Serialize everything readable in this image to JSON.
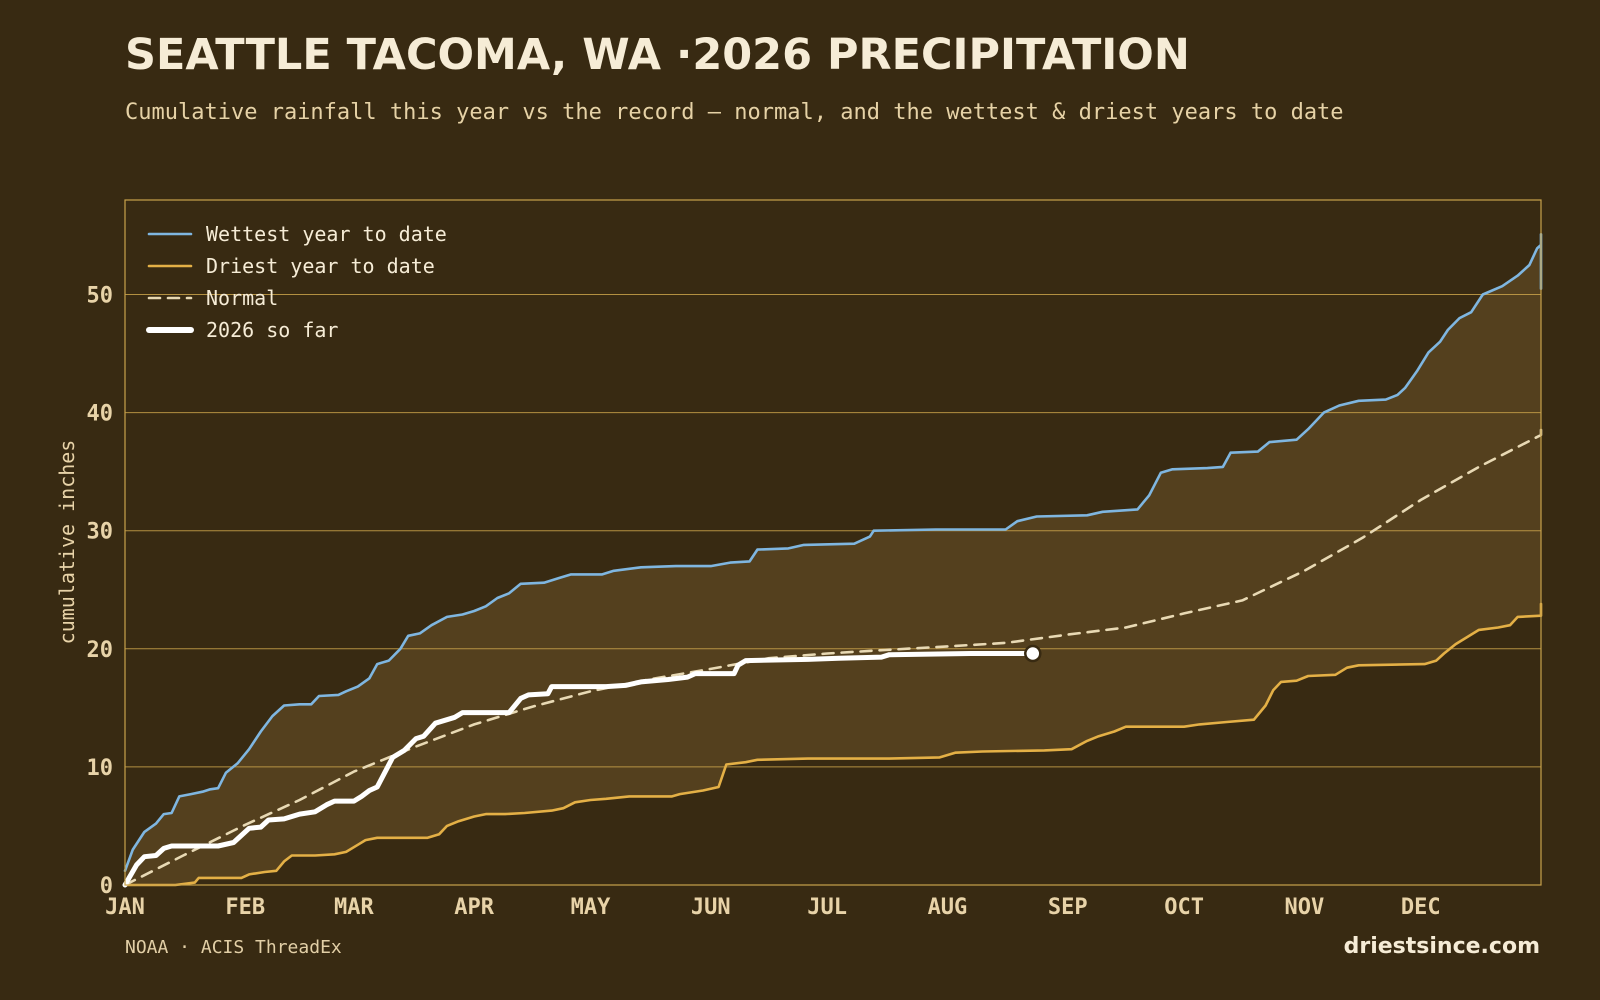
{
  "header": {
    "title": "SEATTLE TACOMA, WA ·2026 PRECIPITATION",
    "subtitle": "Cumulative rainfall this year vs the record — normal, and the wettest & driest years to date"
  },
  "footer": {
    "source": "NOAA · ACIS ThreadEx",
    "site": "driestsince.com"
  },
  "colors": {
    "background": "#382a12",
    "band_fill": "#54401e",
    "frame": "#c9a24a",
    "wettest": "#7fb6e0",
    "driest": "#e4b046",
    "normal": "#e8d9b4",
    "current": "#ffffff",
    "tick_text": "#e8d3a8"
  },
  "chart_data": {
    "type": "line",
    "title": "SEATTLE TACOMA, WA ·2026 PRECIPITATION",
    "ylabel": "cumulative inches",
    "xlabel": "",
    "x_unit": "day of year",
    "xlim": [
      1,
      366
    ],
    "ylim": [
      0,
      58
    ],
    "y_ticks": [
      0,
      10,
      20,
      30,
      40,
      50
    ],
    "month_ticks": [
      {
        "label": "JAN",
        "day": 1
      },
      {
        "label": "FEB",
        "day": 32
      },
      {
        "label": "MAR",
        "day": 60
      },
      {
        "label": "APR",
        "day": 91
      },
      {
        "label": "MAY",
        "day": 121
      },
      {
        "label": "JUN",
        "day": 152
      },
      {
        "label": "JUL",
        "day": 182
      },
      {
        "label": "AUG",
        "day": 213
      },
      {
        "label": "SEP",
        "day": 244
      },
      {
        "label": "OCT",
        "day": 274
      },
      {
        "label": "NOV",
        "day": 305
      },
      {
        "label": "DEC",
        "day": 335
      }
    ],
    "grid": "horizontal",
    "legend_position": "top-left",
    "band": {
      "upper": "Wettest year to date",
      "lower": "Driest year to date"
    },
    "series": [
      {
        "name": "Wettest year to date",
        "style": "solid",
        "points": [
          [
            1,
            1.2
          ],
          [
            3,
            3.0
          ],
          [
            6,
            4.5
          ],
          [
            9,
            5.2
          ],
          [
            11,
            6.0
          ],
          [
            13,
            6.1
          ],
          [
            15,
            7.5
          ],
          [
            18,
            7.7
          ],
          [
            21,
            7.9
          ],
          [
            23,
            8.1
          ],
          [
            25,
            8.2
          ],
          [
            27,
            9.5
          ],
          [
            30,
            10.3
          ],
          [
            33,
            11.5
          ],
          [
            36,
            13.0
          ],
          [
            39,
            14.3
          ],
          [
            42,
            15.2
          ],
          [
            46,
            15.3
          ],
          [
            49,
            15.3
          ],
          [
            51,
            16.0
          ],
          [
            56,
            16.1
          ],
          [
            58,
            16.4
          ],
          [
            61,
            16.8
          ],
          [
            64,
            17.5
          ],
          [
            66,
            18.7
          ],
          [
            69,
            19.0
          ],
          [
            72,
            20.0
          ],
          [
            74,
            21.1
          ],
          [
            77,
            21.3
          ],
          [
            80,
            22.0
          ],
          [
            84,
            22.7
          ],
          [
            88,
            22.9
          ],
          [
            91,
            23.2
          ],
          [
            94,
            23.6
          ],
          [
            97,
            24.3
          ],
          [
            100,
            24.7
          ],
          [
            103,
            25.5
          ],
          [
            109,
            25.6
          ],
          [
            113,
            26.0
          ],
          [
            116,
            26.3
          ],
          [
            124,
            26.3
          ],
          [
            127,
            26.6
          ],
          [
            134,
            26.9
          ],
          [
            143,
            27.0
          ],
          [
            152,
            27.0
          ],
          [
            157,
            27.3
          ],
          [
            162,
            27.4
          ],
          [
            164,
            28.4
          ],
          [
            172,
            28.5
          ],
          [
            176,
            28.8
          ],
          [
            189,
            28.9
          ],
          [
            193,
            29.5
          ],
          [
            194,
            30.0
          ],
          [
            210,
            30.1
          ],
          [
            228,
            30.1
          ],
          [
            231,
            30.8
          ],
          [
            236,
            31.2
          ],
          [
            249,
            31.3
          ],
          [
            253,
            31.6
          ],
          [
            262,
            31.8
          ],
          [
            265,
            33.0
          ],
          [
            268,
            34.9
          ],
          [
            271,
            35.2
          ],
          [
            280,
            35.3
          ],
          [
            284,
            35.4
          ],
          [
            286,
            36.6
          ],
          [
            293,
            36.7
          ],
          [
            296,
            37.5
          ],
          [
            303,
            37.7
          ],
          [
            306,
            38.6
          ],
          [
            310,
            40.0
          ],
          [
            314,
            40.6
          ],
          [
            319,
            41.0
          ],
          [
            326,
            41.1
          ],
          [
            329,
            41.5
          ],
          [
            331,
            42.1
          ],
          [
            334,
            43.5
          ],
          [
            337,
            45.1
          ],
          [
            340,
            46.0
          ],
          [
            342,
            47.0
          ],
          [
            345,
            48.0
          ],
          [
            348,
            48.5
          ],
          [
            351,
            50.0
          ],
          [
            356,
            50.7
          ],
          [
            360,
            51.6
          ],
          [
            363,
            52.5
          ],
          [
            365,
            53.9
          ],
          [
            366,
            54.2
          ],
          [
            369,
            55.1
          ],
          [
            370,
            55.0
          ],
          [
            371,
            50.5
          ]
        ]
      },
      {
        "name": "Driest year to date",
        "style": "solid",
        "points": [
          [
            1,
            0.0
          ],
          [
            14,
            0.0
          ],
          [
            19,
            0.2
          ],
          [
            20,
            0.6
          ],
          [
            31,
            0.6
          ],
          [
            33,
            0.9
          ],
          [
            37,
            1.1
          ],
          [
            40,
            1.2
          ],
          [
            42,
            2.0
          ],
          [
            44,
            2.5
          ],
          [
            50,
            2.5
          ],
          [
            55,
            2.6
          ],
          [
            58,
            2.8
          ],
          [
            61,
            3.4
          ],
          [
            63,
            3.8
          ],
          [
            66,
            4.0
          ],
          [
            79,
            4.0
          ],
          [
            82,
            4.3
          ],
          [
            84,
            5.0
          ],
          [
            87,
            5.4
          ],
          [
            91,
            5.8
          ],
          [
            94,
            6.0
          ],
          [
            99,
            6.0
          ],
          [
            104,
            6.1
          ],
          [
            111,
            6.3
          ],
          [
            114,
            6.5
          ],
          [
            117,
            7.0
          ],
          [
            121,
            7.2
          ],
          [
            125,
            7.3
          ],
          [
            131,
            7.5
          ],
          [
            142,
            7.5
          ],
          [
            144,
            7.7
          ],
          [
            150,
            8.0
          ],
          [
            154,
            8.3
          ],
          [
            156,
            10.2
          ],
          [
            161,
            10.4
          ],
          [
            164,
            10.6
          ],
          [
            177,
            10.7
          ],
          [
            189,
            10.7
          ],
          [
            198,
            10.7
          ],
          [
            211,
            10.8
          ],
          [
            215,
            11.2
          ],
          [
            222,
            11.3
          ],
          [
            238,
            11.4
          ],
          [
            245,
            11.5
          ],
          [
            249,
            12.2
          ],
          [
            252,
            12.6
          ],
          [
            256,
            13.0
          ],
          [
            259,
            13.4
          ],
          [
            274,
            13.4
          ],
          [
            278,
            13.6
          ],
          [
            285,
            13.8
          ],
          [
            292,
            14.0
          ],
          [
            295,
            15.2
          ],
          [
            297,
            16.5
          ],
          [
            299,
            17.2
          ],
          [
            303,
            17.3
          ],
          [
            306,
            17.7
          ],
          [
            313,
            17.8
          ],
          [
            316,
            18.4
          ],
          [
            319,
            18.6
          ],
          [
            336,
            18.7
          ],
          [
            339,
            19.0
          ],
          [
            341,
            19.6
          ],
          [
            344,
            20.4
          ],
          [
            347,
            21.0
          ],
          [
            350,
            21.6
          ],
          [
            355,
            21.8
          ],
          [
            358,
            22.0
          ],
          [
            360,
            22.7
          ],
          [
            367,
            22.8
          ],
          [
            368,
            23.5
          ],
          [
            371,
            23.8
          ]
        ]
      },
      {
        "name": "Normal",
        "style": "dashed",
        "points": [
          [
            1,
            0.0
          ],
          [
            16,
            2.5
          ],
          [
            32,
            5.1
          ],
          [
            46,
            7.2
          ],
          [
            60,
            9.6
          ],
          [
            75,
            11.6
          ],
          [
            91,
            13.6
          ],
          [
            106,
            15.1
          ],
          [
            121,
            16.4
          ],
          [
            136,
            17.4
          ],
          [
            152,
            18.3
          ],
          [
            167,
            19.2
          ],
          [
            182,
            19.6
          ],
          [
            197,
            19.9
          ],
          [
            213,
            20.2
          ],
          [
            228,
            20.5
          ],
          [
            244,
            21.2
          ],
          [
            259,
            21.8
          ],
          [
            274,
            23.0
          ],
          [
            289,
            24.1
          ],
          [
            305,
            26.6
          ],
          [
            320,
            29.4
          ],
          [
            335,
            32.6
          ],
          [
            350,
            35.4
          ],
          [
            366,
            38.1
          ],
          [
            371,
            38.6
          ]
        ]
      },
      {
        "name": "2026 so far",
        "style": "bold",
        "points": [
          [
            1,
            0.0
          ],
          [
            4,
            1.7
          ],
          [
            6,
            2.4
          ],
          [
            9,
            2.5
          ],
          [
            11,
            3.1
          ],
          [
            13,
            3.3
          ],
          [
            25,
            3.3
          ],
          [
            29,
            3.6
          ],
          [
            31,
            4.2
          ],
          [
            33,
            4.8
          ],
          [
            36,
            4.9
          ],
          [
            38,
            5.5
          ],
          [
            42,
            5.6
          ],
          [
            46,
            6.0
          ],
          [
            50,
            6.2
          ],
          [
            53,
            6.8
          ],
          [
            55,
            7.1
          ],
          [
            60,
            7.1
          ],
          [
            62,
            7.5
          ],
          [
            64,
            8.0
          ],
          [
            66,
            8.3
          ],
          [
            70,
            10.8
          ],
          [
            73,
            11.4
          ],
          [
            76,
            12.4
          ],
          [
            78,
            12.6
          ],
          [
            81,
            13.7
          ],
          [
            86,
            14.2
          ],
          [
            88,
            14.6
          ],
          [
            100,
            14.6
          ],
          [
            103,
            15.8
          ],
          [
            105,
            16.1
          ],
          [
            110,
            16.2
          ],
          [
            111,
            16.8
          ],
          [
            125,
            16.8
          ],
          [
            130,
            16.9
          ],
          [
            134,
            17.2
          ],
          [
            141,
            17.4
          ],
          [
            146,
            17.6
          ],
          [
            148,
            17.9
          ],
          [
            158,
            17.9
          ],
          [
            159,
            18.6
          ],
          [
            161,
            19.0
          ],
          [
            177,
            19.1
          ],
          [
            185,
            19.2
          ],
          [
            196,
            19.3
          ],
          [
            198,
            19.5
          ],
          [
            219,
            19.6
          ],
          [
            235,
            19.6
          ]
        ]
      }
    ],
    "current_marker": {
      "day": 235,
      "value": 19.6
    }
  }
}
